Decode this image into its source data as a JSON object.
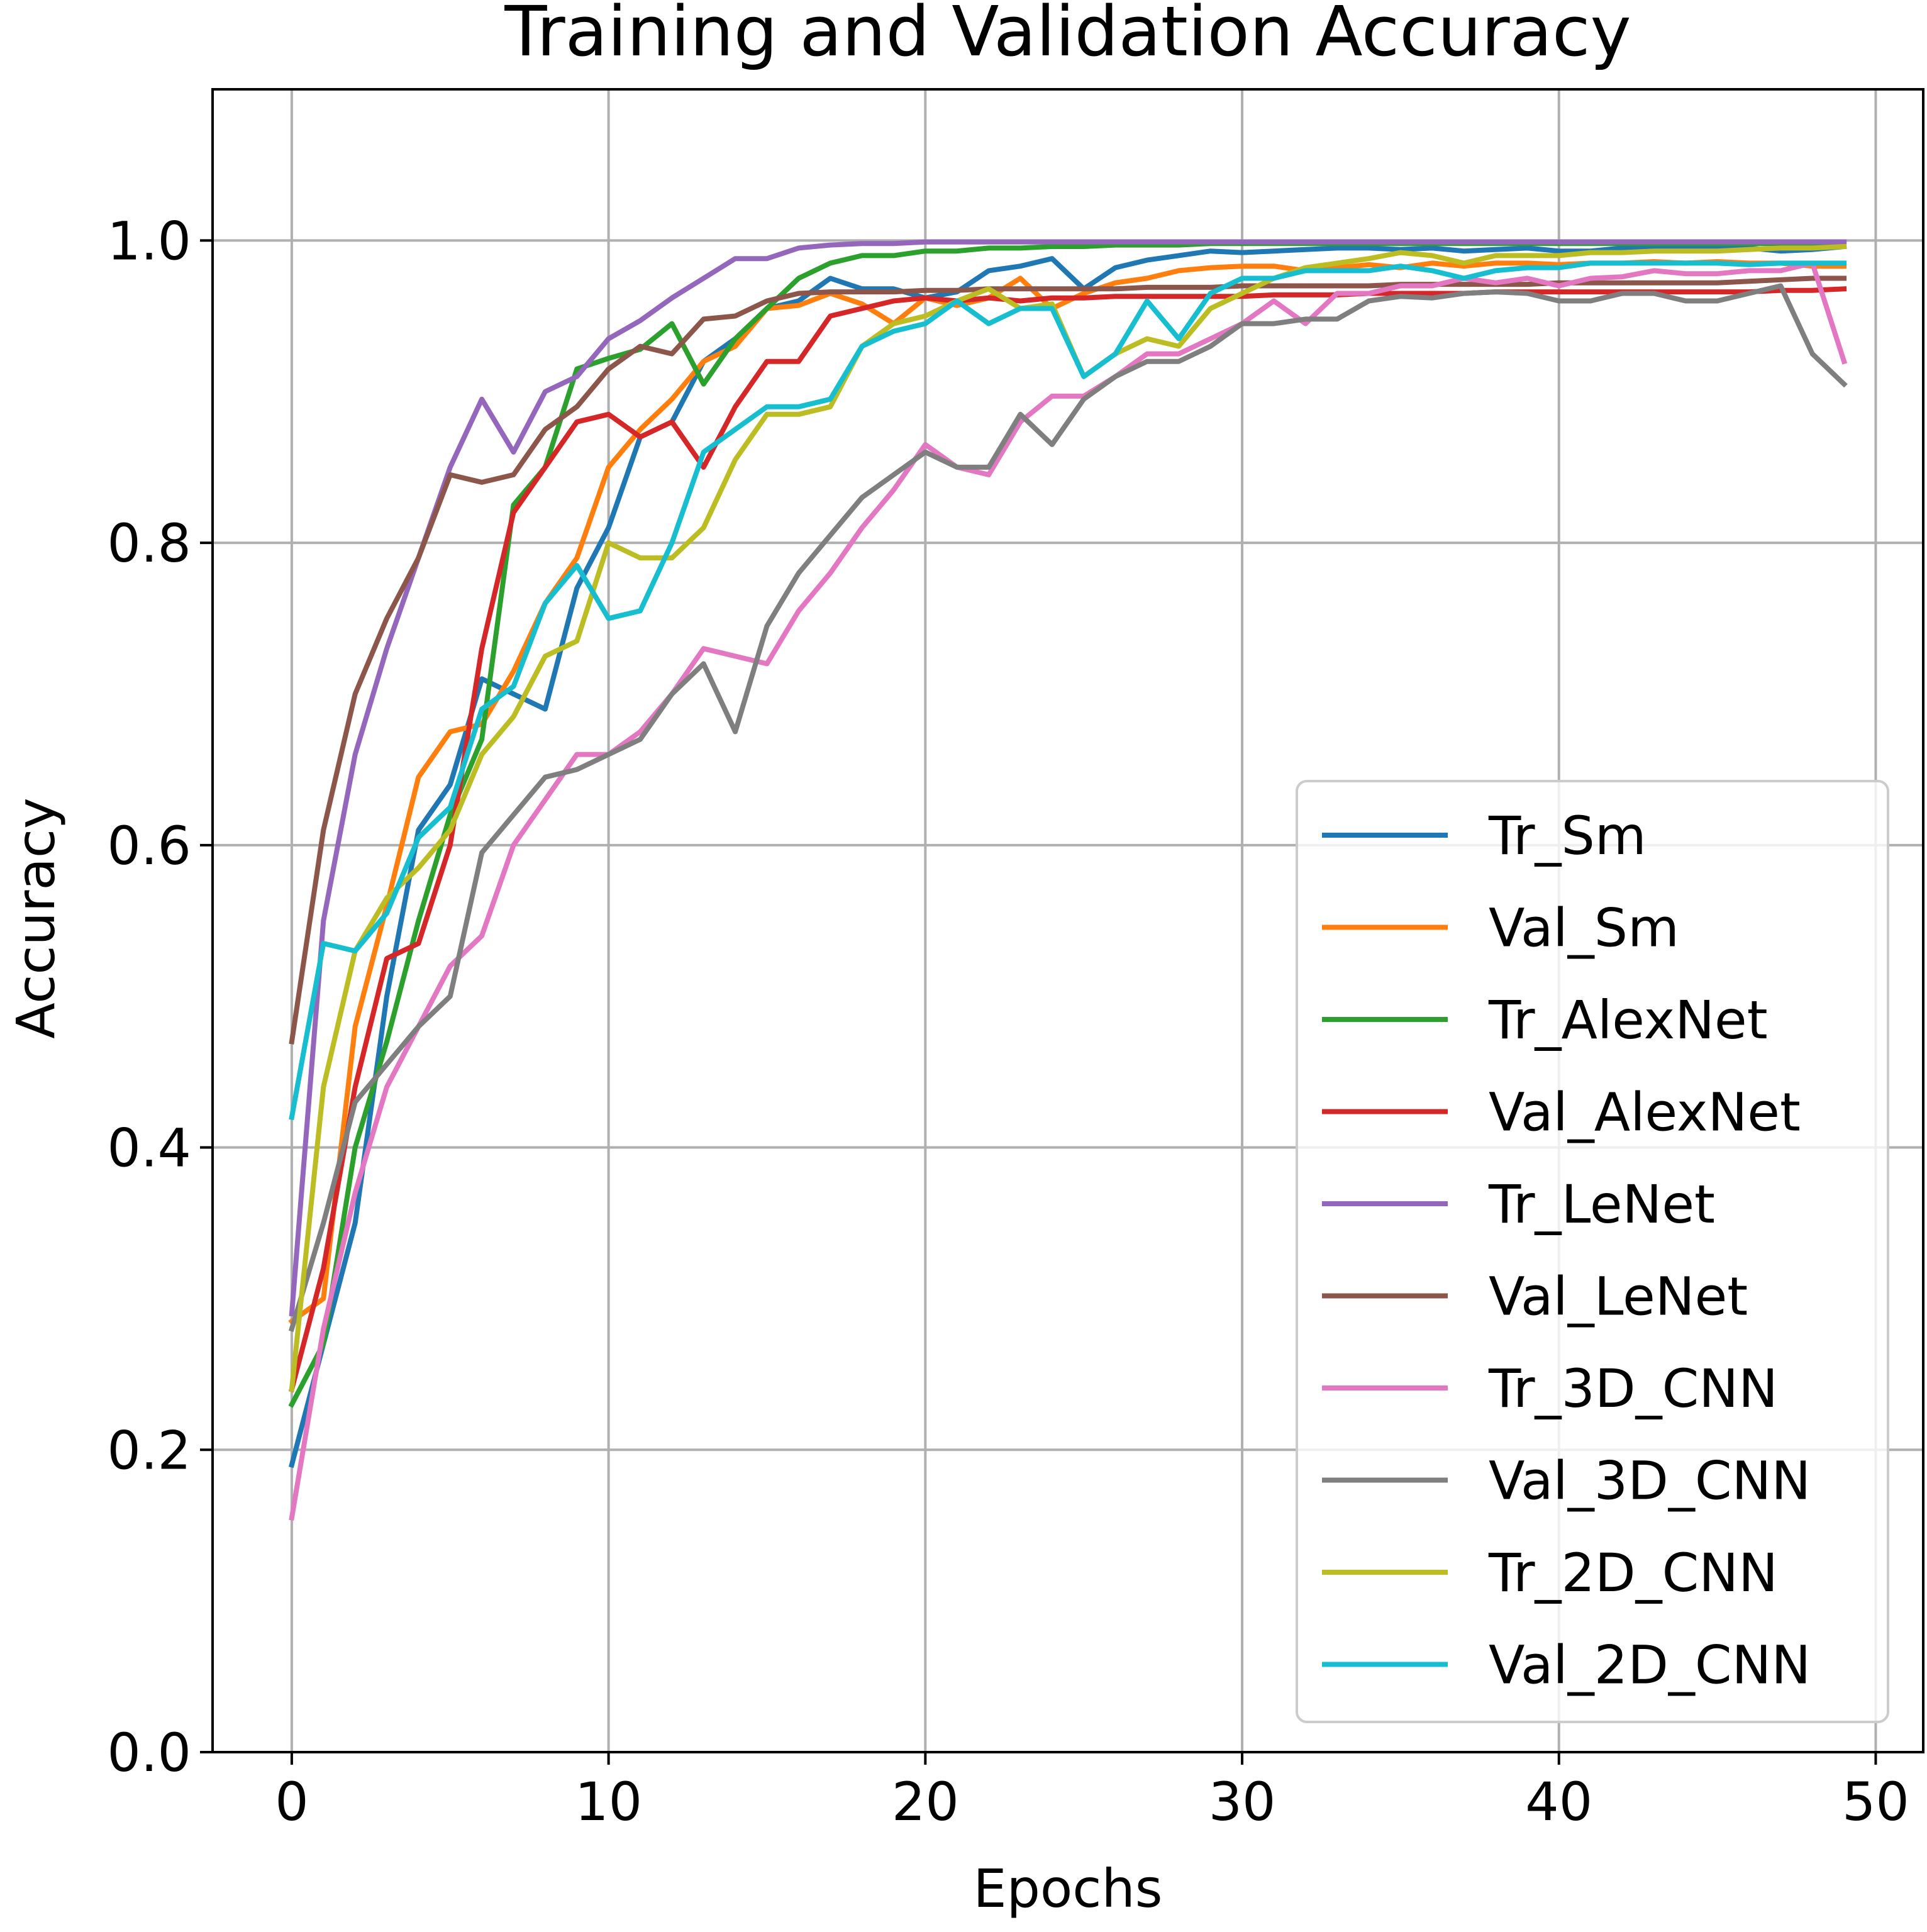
{
  "chart_data": {
    "type": "line",
    "title": "Training and Validation Accuracy",
    "xlabel": "Epochs",
    "ylabel": "Accuracy",
    "xlim": [
      -2.5,
      51.5
    ],
    "ylim": [
      0.0,
      1.1
    ],
    "xticks": [
      0,
      10,
      20,
      30,
      40,
      50
    ],
    "xtick_labels": [
      "0",
      "10",
      "20",
      "30",
      "40",
      "50"
    ],
    "yticks": [
      0.0,
      0.2,
      0.4,
      0.6,
      0.8,
      1.0
    ],
    "ytick_labels": [
      "0.0",
      "0.2",
      "0.4",
      "0.6",
      "0.8",
      "1.0"
    ],
    "grid": true,
    "legend_position": "lower-right",
    "x": [
      0,
      1,
      2,
      3,
      4,
      5,
      6,
      7,
      8,
      9,
      10,
      11,
      12,
      13,
      14,
      15,
      16,
      17,
      18,
      19,
      20,
      21,
      22,
      23,
      24,
      25,
      26,
      27,
      28,
      29,
      30,
      31,
      32,
      33,
      34,
      35,
      36,
      37,
      38,
      39,
      40,
      41,
      42,
      43,
      44,
      45,
      46,
      47,
      48,
      49
    ],
    "series": [
      {
        "name": "Tr_Sm",
        "color": "#1f77b4",
        "values": [
          0.19,
          0.27,
          0.35,
          0.5,
          0.61,
          0.64,
          0.71,
          0.7,
          0.69,
          0.77,
          0.81,
          0.87,
          0.88,
          0.92,
          0.935,
          0.955,
          0.96,
          0.975,
          0.968,
          0.968,
          0.962,
          0.966,
          0.98,
          0.983,
          0.988,
          0.968,
          0.982,
          0.987,
          0.99,
          0.993,
          0.992,
          0.993,
          0.994,
          0.995,
          0.995,
          0.994,
          0.995,
          0.993,
          0.994,
          0.995,
          0.993,
          0.993,
          0.995,
          0.996,
          0.995,
          0.996,
          0.995,
          0.993,
          0.994,
          0.996
        ]
      },
      {
        "name": "Val_Sm",
        "color": "#ff7f0e",
        "values": [
          0.285,
          0.3,
          0.48,
          0.56,
          0.645,
          0.675,
          0.68,
          0.715,
          0.76,
          0.79,
          0.85,
          0.875,
          0.895,
          0.92,
          0.93,
          0.955,
          0.957,
          0.965,
          0.958,
          0.945,
          0.962,
          0.957,
          0.962,
          0.975,
          0.955,
          0.965,
          0.972,
          0.975,
          0.98,
          0.982,
          0.983,
          0.983,
          0.98,
          0.982,
          0.984,
          0.982,
          0.985,
          0.983,
          0.985,
          0.985,
          0.984,
          0.985,
          0.985,
          0.986,
          0.985,
          0.986,
          0.985,
          0.985,
          0.983,
          0.983
        ]
      },
      {
        "name": "Tr_AlexNet",
        "color": "#2ca02c",
        "values": [
          0.23,
          0.27,
          0.4,
          0.47,
          0.55,
          0.62,
          0.67,
          0.825,
          0.85,
          0.915,
          0.922,
          0.928,
          0.945,
          0.905,
          0.935,
          0.955,
          0.975,
          0.985,
          0.99,
          0.99,
          0.993,
          0.993,
          0.995,
          0.995,
          0.996,
          0.996,
          0.997,
          0.997,
          0.997,
          0.998,
          0.998,
          0.998,
          0.998,
          0.998,
          0.998,
          0.998,
          0.998,
          0.998,
          0.998,
          0.998,
          0.998,
          0.998,
          0.998,
          0.998,
          0.998,
          0.998,
          0.998,
          0.998,
          0.998,
          0.998
        ]
      },
      {
        "name": "Val_AlexNet",
        "color": "#d62728",
        "values": [
          0.24,
          0.32,
          0.44,
          0.525,
          0.535,
          0.6,
          0.73,
          0.82,
          0.85,
          0.88,
          0.885,
          0.87,
          0.88,
          0.85,
          0.89,
          0.92,
          0.92,
          0.95,
          0.955,
          0.96,
          0.962,
          0.96,
          0.962,
          0.96,
          0.962,
          0.962,
          0.963,
          0.963,
          0.963,
          0.963,
          0.963,
          0.964,
          0.964,
          0.964,
          0.965,
          0.965,
          0.965,
          0.965,
          0.966,
          0.966,
          0.966,
          0.966,
          0.966,
          0.966,
          0.966,
          0.966,
          0.966,
          0.967,
          0.967,
          0.968
        ]
      },
      {
        "name": "Tr_LeNet",
        "color": "#9467bd",
        "values": [
          0.29,
          0.55,
          0.66,
          0.73,
          0.79,
          0.85,
          0.895,
          0.86,
          0.9,
          0.91,
          0.935,
          0.947,
          0.962,
          0.975,
          0.988,
          0.988,
          0.995,
          0.997,
          0.998,
          0.998,
          0.999,
          0.999,
          0.999,
          0.999,
          0.999,
          0.999,
          0.999,
          0.999,
          0.999,
          0.999,
          0.999,
          0.999,
          0.999,
          0.999,
          0.999,
          0.999,
          0.999,
          0.999,
          0.999,
          0.999,
          0.999,
          0.999,
          0.999,
          0.999,
          0.999,
          0.999,
          0.999,
          0.999,
          0.999,
          0.999
        ]
      },
      {
        "name": "Val_LeNet",
        "color": "#8c564b",
        "values": [
          0.47,
          0.61,
          0.7,
          0.75,
          0.79,
          0.845,
          0.84,
          0.845,
          0.875,
          0.89,
          0.915,
          0.93,
          0.925,
          0.948,
          0.95,
          0.96,
          0.965,
          0.966,
          0.966,
          0.966,
          0.967,
          0.967,
          0.968,
          0.968,
          0.968,
          0.968,
          0.968,
          0.969,
          0.969,
          0.969,
          0.97,
          0.97,
          0.97,
          0.97,
          0.97,
          0.971,
          0.971,
          0.971,
          0.971,
          0.971,
          0.972,
          0.972,
          0.972,
          0.972,
          0.972,
          0.972,
          0.973,
          0.974,
          0.975,
          0.975
        ]
      },
      {
        "name": "Tr_3D_CNN",
        "color": "#e377c2",
        "values": [
          0.155,
          0.28,
          0.37,
          0.44,
          0.48,
          0.52,
          0.54,
          0.6,
          0.63,
          0.66,
          0.66,
          0.675,
          0.7,
          0.73,
          0.725,
          0.72,
          0.755,
          0.78,
          0.81,
          0.835,
          0.865,
          0.85,
          0.845,
          0.88,
          0.897,
          0.897,
          0.91,
          0.925,
          0.925,
          0.935,
          0.945,
          0.96,
          0.945,
          0.965,
          0.965,
          0.97,
          0.97,
          0.975,
          0.972,
          0.975,
          0.97,
          0.975,
          0.976,
          0.98,
          0.978,
          0.978,
          0.98,
          0.98,
          0.985,
          0.92
        ]
      },
      {
        "name": "Val_3D_CNN",
        "color": "#7f7f7f",
        "values": [
          0.28,
          0.35,
          0.43,
          0.455,
          0.48,
          0.5,
          0.595,
          0.62,
          0.645,
          0.65,
          0.66,
          0.67,
          0.7,
          0.72,
          0.675,
          0.745,
          0.78,
          0.805,
          0.83,
          0.845,
          0.86,
          0.85,
          0.85,
          0.885,
          0.865,
          0.895,
          0.91,
          0.92,
          0.92,
          0.93,
          0.945,
          0.945,
          0.948,
          0.948,
          0.96,
          0.963,
          0.962,
          0.965,
          0.966,
          0.965,
          0.96,
          0.96,
          0.965,
          0.965,
          0.96,
          0.96,
          0.965,
          0.97,
          0.925,
          0.905
        ]
      },
      {
        "name": "Tr_2D_CNN",
        "color": "#bcbd22",
        "values": [
          0.24,
          0.44,
          0.53,
          0.565,
          0.585,
          0.61,
          0.66,
          0.685,
          0.725,
          0.735,
          0.8,
          0.79,
          0.79,
          0.81,
          0.855,
          0.885,
          0.885,
          0.89,
          0.93,
          0.945,
          0.95,
          0.96,
          0.968,
          0.955,
          0.958,
          0.91,
          0.925,
          0.935,
          0.93,
          0.955,
          0.965,
          0.975,
          0.982,
          0.985,
          0.988,
          0.992,
          0.99,
          0.985,
          0.99,
          0.99,
          0.99,
          0.992,
          0.992,
          0.993,
          0.993,
          0.993,
          0.994,
          0.995,
          0.995,
          0.996
        ]
      },
      {
        "name": "Val_2D_CNN",
        "color": "#17becf",
        "values": [
          0.42,
          0.535,
          0.53,
          0.555,
          0.605,
          0.625,
          0.69,
          0.705,
          0.76,
          0.785,
          0.75,
          0.755,
          0.8,
          0.86,
          0.875,
          0.89,
          0.89,
          0.895,
          0.93,
          0.94,
          0.945,
          0.96,
          0.945,
          0.955,
          0.955,
          0.91,
          0.925,
          0.96,
          0.935,
          0.965,
          0.975,
          0.975,
          0.98,
          0.98,
          0.98,
          0.983,
          0.98,
          0.975,
          0.98,
          0.982,
          0.982,
          0.985,
          0.985,
          0.985,
          0.985,
          0.985,
          0.984,
          0.985,
          0.985,
          0.985
        ]
      }
    ]
  }
}
